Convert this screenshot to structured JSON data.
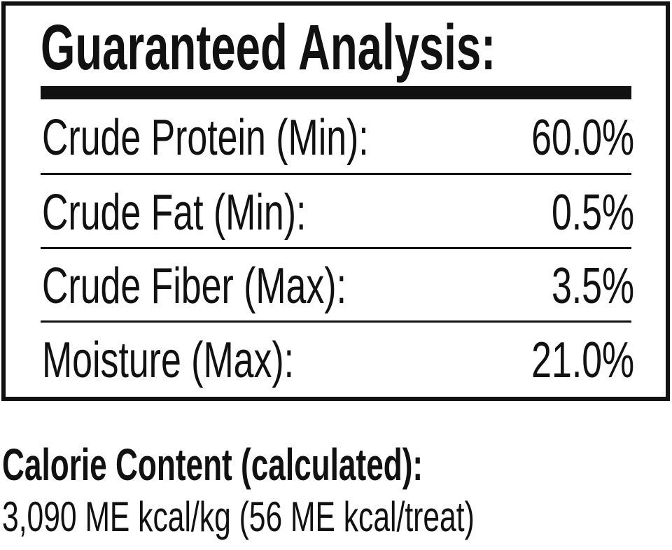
{
  "analysis": {
    "title": "Guaranteed Analysis:",
    "rows": [
      {
        "label": "Crude Protein (Min):",
        "value": "60.0%"
      },
      {
        "label": "Crude Fat (Min):",
        "value": "0.5%"
      },
      {
        "label": "Crude Fiber (Max):",
        "value": "3.5%"
      },
      {
        "label": "Moisture (Max):",
        "value": "21.0%"
      }
    ]
  },
  "calorie": {
    "heading": "Calorie Content (calculated):",
    "value": "3,090 ME kcal/kg (56 ME kcal/treat)"
  }
}
